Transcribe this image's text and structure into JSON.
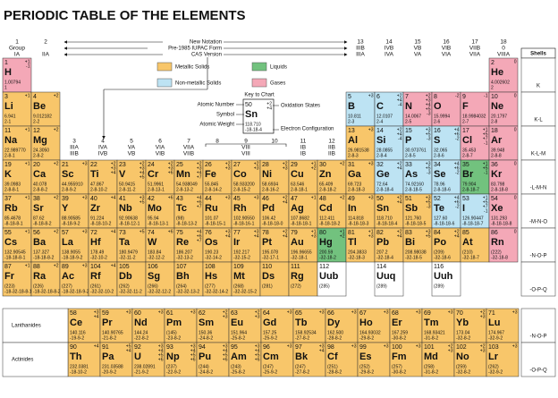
{
  "title": "PERIODIC TABLE OF THE ELEMENTS",
  "notation": [
    "New Notation",
    "Pre-1985 IUPAC Form",
    "CAS Version"
  ],
  "groups": [
    {
      "number": 1,
      "label": "Group",
      "cas": "IA"
    },
    {
      "number": 2,
      "cas": "IIA"
    },
    {
      "number": 3,
      "old": "IIIA",
      "cas": "IIIB"
    },
    {
      "number": 4,
      "old": "IVA",
      "cas": "IVB"
    },
    {
      "number": 5,
      "old": "VA",
      "cas": "VB"
    },
    {
      "number": 6,
      "old": "VIA",
      "cas": "VIB"
    },
    {
      "number": 7,
      "old": "VIIA",
      "cas": "VIIB"
    },
    {
      "number": 8
    },
    {
      "number": 9
    },
    {
      "number": 10
    },
    {
      "number": 11,
      "old": "IB",
      "cas": "IB"
    },
    {
      "number": 12,
      "old": "IIB",
      "cas": "IIB"
    },
    {
      "number": 13,
      "old": "IIIB",
      "cas": "IIIA"
    },
    {
      "number": 14,
      "old": "IVB",
      "cas": "IVA"
    },
    {
      "number": 15,
      "old": "VB",
      "cas": "VA"
    },
    {
      "number": 16,
      "old": "VIB",
      "cas": "VIA"
    },
    {
      "number": 17,
      "old": "VIIB",
      "cas": "VIIA"
    },
    {
      "number": 18,
      "old": "0",
      "cas": "VIIIA"
    }
  ],
  "group_8_10": {
    "old": "VIII",
    "cas": "VIII"
  },
  "legend": [
    {
      "label": "Metallic Solids",
      "color": "#f8c66a"
    },
    {
      "label": "Liquids",
      "color": "#72c27e"
    },
    {
      "label": "Non-metallic Solids",
      "color": "#bde3f3"
    },
    {
      "label": "Gases",
      "color": "#f4a8b7"
    }
  ],
  "key": {
    "title": "Key to Chart",
    "atomic_number_label": "Atomic Number",
    "symbol_label": "Symbol",
    "atomic_weight_label": "Atomic Weight",
    "oxidation_label": "Oxidation States",
    "config_label": "Electron Configuration",
    "example": {
      "z": 50,
      "s": "Sn",
      "w": "118.710",
      "c": "-18-18-4",
      "o": [
        "+2",
        "+4"
      ]
    }
  },
  "shells_title": "Shells",
  "shells": [
    "K",
    "K-L",
    "K-L-M",
    "-L-M-N",
    "-M-N-O",
    "-N-O-P",
    "-O-P-Q",
    "-N-O-P",
    "-O-P-Q"
  ],
  "row_labels": [
    "Lanthanides",
    "Actinides"
  ],
  "elements": [
    {
      "z": 1,
      "s": "H",
      "w": "1.00794",
      "c": "1",
      "o": [
        "+1",
        "-1"
      ],
      "k": 3
    },
    {
      "z": 2,
      "s": "He",
      "w": "4.002602",
      "c": "2",
      "o": [
        "0"
      ],
      "k": 3
    },
    {
      "z": 3,
      "s": "Li",
      "w": "6.941",
      "c": "2-1",
      "o": [
        "+1"
      ],
      "k": 0
    },
    {
      "z": 4,
      "s": "Be",
      "w": "9.012182",
      "c": "2-2",
      "o": [
        "+2"
      ],
      "k": 0
    },
    {
      "z": 5,
      "s": "B",
      "w": "10.811",
      "c": "2-3",
      "o": [
        "+3"
      ],
      "k": 2
    },
    {
      "z": 6,
      "s": "C",
      "w": "12.0107",
      "c": "2-4",
      "o": [
        "+2",
        "+4",
        "-4"
      ],
      "k": 2
    },
    {
      "z": 7,
      "s": "N",
      "w": "14.0067",
      "c": "2-5",
      "o": [
        "+2",
        "+3",
        "+4",
        "+5",
        "-3"
      ],
      "k": 3
    },
    {
      "z": 8,
      "s": "O",
      "w": "15.9994",
      "c": "2-6",
      "o": [
        "-2"
      ],
      "k": 3
    },
    {
      "z": 9,
      "s": "F",
      "w": "18.9984032",
      "c": "2-7",
      "o": [
        "-1"
      ],
      "k": 3
    },
    {
      "z": 10,
      "s": "Ne",
      "w": "20.1797",
      "c": "2-8",
      "o": [
        "0"
      ],
      "k": 3
    },
    {
      "z": 11,
      "s": "Na",
      "w": "22.989770",
      "c": "2-8-1",
      "o": [
        "+1"
      ],
      "k": 0
    },
    {
      "z": 12,
      "s": "Mg",
      "w": "24.3050",
      "c": "2-8-2",
      "o": [
        "+2"
      ],
      "k": 0
    },
    {
      "z": 13,
      "s": "Al",
      "w": "26.981538",
      "c": "2-8-3",
      "o": [
        "+3"
      ],
      "k": 0
    },
    {
      "z": 14,
      "s": "Si",
      "w": "28.0855",
      "c": "2-8-4",
      "o": [
        "+2",
        "+4",
        "-4"
      ],
      "k": 2
    },
    {
      "z": 15,
      "s": "P",
      "w": "30.973761",
      "c": "2-8-5",
      "o": [
        "+3",
        "+5",
        "-3"
      ],
      "k": 2
    },
    {
      "z": 16,
      "s": "S",
      "w": "32.065",
      "c": "2-8-6",
      "o": [
        "+4",
        "+6",
        "-2"
      ],
      "k": 2
    },
    {
      "z": 17,
      "s": "Cl",
      "w": "35.453",
      "c": "2-8-7",
      "o": [
        "+1",
        "+5",
        "+7",
        "-1"
      ],
      "k": 3
    },
    {
      "z": 18,
      "s": "Ar",
      "w": "39.948",
      "c": "2-8-8",
      "o": [
        "0"
      ],
      "k": 3
    },
    {
      "z": 19,
      "s": "K",
      "w": "39.0983",
      "c": "2-8-8-1",
      "o": [
        "+1"
      ],
      "k": 0
    },
    {
      "z": 20,
      "s": "Ca",
      "w": "40.078",
      "c": "2-8-8-2",
      "o": [
        "+2"
      ],
      "k": 0
    },
    {
      "z": 21,
      "s": "Sc",
      "w": "44.955910",
      "c": "2-8-9-2",
      "o": [
        "+3"
      ],
      "k": 0
    },
    {
      "z": 22,
      "s": "Ti",
      "w": "47.867",
      "c": "2-8-10-2",
      "o": [
        "+2",
        "+3",
        "+4"
      ],
      "k": 0
    },
    {
      "z": 23,
      "s": "V",
      "w": "50.9415",
      "c": "2-8-11-2",
      "o": [
        "+2",
        "+3",
        "+4",
        "+5"
      ],
      "k": 0
    },
    {
      "z": 24,
      "s": "Cr",
      "w": "51.9961",
      "c": "2-8-13-1",
      "o": [
        "+2",
        "+3",
        "+6"
      ],
      "k": 0
    },
    {
      "z": 25,
      "s": "Mn",
      "w": "54.938049",
      "c": "2-8-13-2",
      "o": [
        "+2",
        "+3",
        "+4",
        "+7"
      ],
      "k": 0
    },
    {
      "z": 26,
      "s": "Fe",
      "w": "55.845",
      "c": "2-8-14-2",
      "o": [
        "+2",
        "+3"
      ],
      "k": 0
    },
    {
      "z": 27,
      "s": "Co",
      "w": "58.933200",
      "c": "2-8-15-2",
      "o": [
        "+2",
        "+3"
      ],
      "k": 0
    },
    {
      "z": 28,
      "s": "Ni",
      "w": "58.6934",
      "c": "2-8-16-2",
      "o": [
        "+2",
        "+3"
      ],
      "k": 0
    },
    {
      "z": 29,
      "s": "Cu",
      "w": "63.546",
      "c": "2-8-18-1",
      "o": [
        "+1",
        "+2"
      ],
      "k": 0
    },
    {
      "z": 30,
      "s": "Zn",
      "w": "65.409",
      "c": "2-8-18-2",
      "o": [
        "+2"
      ],
      "k": 0
    },
    {
      "z": 31,
      "s": "Ga",
      "w": "69.723",
      "c": "2-8-18-3",
      "o": [
        "+3"
      ],
      "k": 0
    },
    {
      "z": 32,
      "s": "Ge",
      "w": "72.64",
      "c": "2-8-18-4",
      "o": [
        "+2",
        "+4"
      ],
      "k": 2
    },
    {
      "z": 33,
      "s": "As",
      "w": "74.92160",
      "c": "2-8-18-5",
      "o": [
        "+3",
        "+5",
        "-3"
      ],
      "k": 2
    },
    {
      "z": 34,
      "s": "Se",
      "w": "78.96",
      "c": "2-8-18-6",
      "o": [
        "+4",
        "+6",
        "-2"
      ],
      "k": 2
    },
    {
      "z": 35,
      "s": "Br",
      "w": "79.904",
      "c": "2-8-18-7",
      "o": [
        "+1",
        "+5",
        "-1"
      ],
      "k": 1
    },
    {
      "z": 36,
      "s": "Kr",
      "w": "83.798",
      "c": "2-8-18-8",
      "o": [
        "0"
      ],
      "k": 3
    },
    {
      "z": 37,
      "s": "Rb",
      "w": "85.4678",
      "c": "-8-18-8-1",
      "o": [
        "+1"
      ],
      "k": 0
    },
    {
      "z": 38,
      "s": "Sr",
      "w": "87.62",
      "c": "-8-18-8-2",
      "o": [
        "+2"
      ],
      "k": 0
    },
    {
      "z": 39,
      "s": "Y",
      "w": "88.90585",
      "c": "-8-18-9-2",
      "o": [
        "+3"
      ],
      "k": 0
    },
    {
      "z": 40,
      "s": "Zr",
      "w": "91.224",
      "c": "-8-18-10-2",
      "o": [
        "+4"
      ],
      "k": 0
    },
    {
      "z": 41,
      "s": "Nb",
      "w": "92.90638",
      "c": "-8-18-12-1",
      "o": [
        "+3",
        "+5"
      ],
      "k": 0
    },
    {
      "z": 42,
      "s": "Mo",
      "w": "95.94",
      "c": "-8-18-13-1",
      "o": [
        "+6"
      ],
      "k": 0
    },
    {
      "z": 43,
      "s": "Tc",
      "w": "(98)",
      "c": "-8-18-13-2",
      "o": [
        "+4",
        "+6",
        "+7"
      ],
      "k": 0
    },
    {
      "z": 44,
      "s": "Ru",
      "w": "101.07",
      "c": "-8-18-15-1",
      "o": [
        "+3"
      ],
      "k": 0
    },
    {
      "z": 45,
      "s": "Rh",
      "w": "102.90550",
      "c": "-8-18-16-1",
      "o": [
        "+3"
      ],
      "k": 0
    },
    {
      "z": 46,
      "s": "Pd",
      "w": "106.42",
      "c": "-8-18-18-0",
      "o": [
        "+2",
        "+4"
      ],
      "k": 0
    },
    {
      "z": 47,
      "s": "Ag",
      "w": "107.8682",
      "c": "-8-18-18-1",
      "o": [
        "+1"
      ],
      "k": 0
    },
    {
      "z": 48,
      "s": "Cd",
      "w": "112.411",
      "c": "-8-18-18-2",
      "o": [
        "+2"
      ],
      "k": 0
    },
    {
      "z": 49,
      "s": "In",
      "w": "114.818",
      "c": "-8-18-18-3",
      "o": [
        "+3"
      ],
      "k": 0
    },
    {
      "z": 50,
      "s": "Sn",
      "w": "118.710",
      "c": "-8-18-18-4",
      "o": [
        "+2",
        "+4"
      ],
      "k": 0
    },
    {
      "z": 51,
      "s": "Sb",
      "w": "121.760",
      "c": "-8-18-18-5",
      "o": [
        "+3",
        "+5",
        "-3"
      ],
      "k": 0
    },
    {
      "z": 52,
      "s": "Te",
      "w": "127.60",
      "c": "-8-18-18-6",
      "o": [
        "+4",
        "+6",
        "-2"
      ],
      "k": 2
    },
    {
      "z": 53,
      "s": "I",
      "w": "126.90447",
      "c": "-8-18-18-7",
      "o": [
        "+1",
        "+5",
        "+7",
        "-1"
      ],
      "k": 2
    },
    {
      "z": 54,
      "s": "Xe",
      "w": "131.293",
      "c": "-8-18-18-8",
      "o": [
        "0"
      ],
      "k": 3
    },
    {
      "z": 55,
      "s": "Cs",
      "w": "132.90545",
      "c": "-18-18-8-1",
      "o": [
        "+1"
      ],
      "k": 0
    },
    {
      "z": 56,
      "s": "Ba",
      "w": "137.327",
      "c": "-18-18-8-2",
      "o": [
        "+2"
      ],
      "k": 0
    },
    {
      "z": 57,
      "s": "La",
      "w": "138.9055",
      "c": "-18-18-9-2",
      "o": [
        "+3"
      ],
      "k": 0
    },
    {
      "z": 58,
      "s": "Ce",
      "w": "140.116",
      "c": "-19-9-2",
      "o": [
        "+3",
        "+4"
      ],
      "k": 0
    },
    {
      "z": 59,
      "s": "Pr",
      "w": "140.90765",
      "c": "-21-8-2",
      "o": [
        "+3"
      ],
      "k": 0
    },
    {
      "z": 60,
      "s": "Nd",
      "w": "144.24",
      "c": "-22-8-2",
      "o": [
        "+3"
      ],
      "k": 0
    },
    {
      "z": 61,
      "s": "Pm",
      "w": "(145)",
      "c": "-23-8-2",
      "o": [
        "+3"
      ],
      "k": 0
    },
    {
      "z": 62,
      "s": "Sm",
      "w": "150.36",
      "c": "-24-8-2",
      "o": [
        "+2",
        "+3"
      ],
      "k": 0
    },
    {
      "z": 63,
      "s": "Eu",
      "w": "151.964",
      "c": "-25-8-2",
      "o": [
        "+2",
        "+3"
      ],
      "k": 0
    },
    {
      "z": 64,
      "s": "Gd",
      "w": "157.25",
      "c": "-25-9-2",
      "o": [
        "+3"
      ],
      "k": 0
    },
    {
      "z": 65,
      "s": "Tb",
      "w": "158.92534",
      "c": "-27-8-2",
      "o": [
        "+3"
      ],
      "k": 0
    },
    {
      "z": 66,
      "s": "Dy",
      "w": "162.500",
      "c": "-28-8-2",
      "o": [
        "+3"
      ],
      "k": 0
    },
    {
      "z": 67,
      "s": "Ho",
      "w": "164.93032",
      "c": "-29-8-2",
      "o": [
        "+3"
      ],
      "k": 0
    },
    {
      "z": 68,
      "s": "Er",
      "w": "167.259",
      "c": "-30-8-2",
      "o": [
        "+3"
      ],
      "k": 0
    },
    {
      "z": 69,
      "s": "Tm",
      "w": "168.93421",
      "c": "-31-8-2",
      "o": [
        "+3"
      ],
      "k": 0
    },
    {
      "z": 70,
      "s": "Yb",
      "w": "173.04",
      "c": "-32-8-2",
      "o": [
        "+2",
        "+3"
      ],
      "k": 0
    },
    {
      "z": 71,
      "s": "Lu",
      "w": "174.967",
      "c": "-32-9-2",
      "o": [
        "+3"
      ],
      "k": 0
    },
    {
      "z": 72,
      "s": "Hf",
      "w": "178.49",
      "c": "-32-10-2",
      "o": [
        "+4"
      ],
      "k": 0
    },
    {
      "z": 73,
      "s": "Ta",
      "w": "180.9479",
      "c": "-32-11-2",
      "o": [
        "+5"
      ],
      "k": 0
    },
    {
      "z": 74,
      "s": "W",
      "w": "183.84",
      "c": "-32-12-2",
      "o": [
        "+6"
      ],
      "k": 0
    },
    {
      "z": 75,
      "s": "Re",
      "w": "186.207",
      "c": "-32-13-2",
      "o": [
        "+4",
        "+6",
        "+7"
      ],
      "k": 0
    },
    {
      "z": 76,
      "s": "Os",
      "w": "190.23",
      "c": "-32-14-2",
      "o": [
        "+3",
        "+4"
      ],
      "k": 0
    },
    {
      "z": 77,
      "s": "Ir",
      "w": "192.217",
      "c": "-32-15-2",
      "o": [
        "+3",
        "+4"
      ],
      "k": 0
    },
    {
      "z": 78,
      "s": "Pt",
      "w": "195.078",
      "c": "-32-17-1",
      "o": [
        "+2",
        "+4"
      ],
      "k": 0
    },
    {
      "z": 79,
      "s": "Au",
      "w": "196.96655",
      "c": "-32-18-1",
      "o": [
        "+1",
        "+3"
      ],
      "k": 0
    },
    {
      "z": 80,
      "s": "Hg",
      "w": "200.59",
      "c": "-32-18-2",
      "o": [
        "+1",
        "+2"
      ],
      "k": 1
    },
    {
      "z": 81,
      "s": "Tl",
      "w": "204.3833",
      "c": "-32-18-3",
      "o": [
        "+1",
        "+3"
      ],
      "k": 0
    },
    {
      "z": 82,
      "s": "Pb",
      "w": "207.2",
      "c": "-32-18-4",
      "o": [
        "+2",
        "+4"
      ],
      "k": 0
    },
    {
      "z": 83,
      "s": "Bi",
      "w": "208.98038",
      "c": "-32-18-5",
      "o": [
        "+3",
        "+5"
      ],
      "k": 0
    },
    {
      "z": 84,
      "s": "Po",
      "w": "(209)",
      "c": "-32-18-6",
      "o": [
        "+2",
        "+4"
      ],
      "k": 0
    },
    {
      "z": 85,
      "s": "At",
      "w": "(210)",
      "c": "-32-18-7",
      "k": 0
    },
    {
      "z": 86,
      "s": "Rn",
      "w": "(222)",
      "c": "-32-18-8",
      "o": [
        "0"
      ],
      "k": 3
    },
    {
      "z": 87,
      "s": "Fr",
      "w": "(223)",
      "c": "-18-32-18-8-1",
      "o": [
        "+1"
      ],
      "k": 0
    },
    {
      "z": 88,
      "s": "Ra",
      "w": "(226)",
      "c": "-18-32-18-8-2",
      "o": [
        "+2"
      ],
      "k": 0
    },
    {
      "z": 89,
      "s": "Ac",
      "w": "(227)",
      "c": "-18-32-18-9-2",
      "o": [
        "+3"
      ],
      "k": 0
    },
    {
      "z": 90,
      "s": "Th",
      "w": "232.0381",
      "c": "-18-10-2",
      "o": [
        "+4"
      ],
      "k": 0
    },
    {
      "z": 91,
      "s": "Pa",
      "w": "231.03588",
      "c": "-20-9-2",
      "o": [
        "+5",
        "+4"
      ],
      "k": 0
    },
    {
      "z": 92,
      "s": "U",
      "w": "238.02891",
      "c": "-21-9-2",
      "o": [
        "+3",
        "+4",
        "+5",
        "+6"
      ],
      "k": 0
    },
    {
      "z": 93,
      "s": "Np",
      "w": "(237)",
      "c": "-22-9-2",
      "o": [
        "+3",
        "+4",
        "+5",
        "+6"
      ],
      "k": 0
    },
    {
      "z": 94,
      "s": "Pu",
      "w": "(244)",
      "c": "-24-8-2",
      "o": [
        "+3",
        "+4",
        "+5",
        "+6"
      ],
      "k": 0
    },
    {
      "z": 95,
      "s": "Am",
      "w": "(243)",
      "c": "-25-8-2",
      "o": [
        "+3",
        "+4",
        "+5",
        "+6"
      ],
      "k": 0
    },
    {
      "z": 96,
      "s": "Cm",
      "w": "(247)",
      "c": "-25-9-2",
      "o": [
        "+3"
      ],
      "k": 0
    },
    {
      "z": 97,
      "s": "Bk",
      "w": "(247)",
      "c": "-27-8-2",
      "o": [
        "+3",
        "+4"
      ],
      "k": 0
    },
    {
      "z": 98,
      "s": "Cf",
      "w": "(251)",
      "c": "-28-8-2",
      "o": [
        "+3"
      ],
      "k": 0
    },
    {
      "z": 99,
      "s": "Es",
      "w": "(252)",
      "c": "-29-8-2",
      "o": [
        "+3"
      ],
      "k": 0
    },
    {
      "z": 100,
      "s": "Fm",
      "w": "(257)",
      "c": "-30-8-2",
      "o": [
        "+3"
      ],
      "k": 0
    },
    {
      "z": 101,
      "s": "Md",
      "w": "(258)",
      "c": "-31-8-2",
      "o": [
        "+2",
        "+3"
      ],
      "k": 0
    },
    {
      "z": 102,
      "s": "No",
      "w": "(259)",
      "c": "-32-8-2",
      "o": [
        "+2",
        "+3"
      ],
      "k": 0
    },
    {
      "z": 103,
      "s": "Lr",
      "w": "(262)",
      "c": "-32-9-2",
      "o": [
        "+3"
      ],
      "k": 0
    },
    {
      "z": 104,
      "s": "Rf",
      "w": "(261)",
      "c": "-32-32-10-2",
      "o": [
        "+4"
      ],
      "k": 0
    },
    {
      "z": 105,
      "s": "Db",
      "w": "(262)",
      "c": "-32-32-11-2",
      "k": 0
    },
    {
      "z": 106,
      "s": "Sg",
      "w": "(266)",
      "c": "-32-32-12-2",
      "k": 0
    },
    {
      "z": 107,
      "s": "Bh",
      "w": "(264)",
      "c": "-32-32-13-2",
      "k": 0
    },
    {
      "z": 108,
      "s": "Hs",
      "w": "(277)",
      "c": "-32-32-14-2",
      "k": 0
    },
    {
      "z": 109,
      "s": "Mt",
      "w": "(268)",
      "c": "-32-32-15-2",
      "k": 0
    },
    {
      "z": 110,
      "s": "Ds",
      "w": "(281)",
      "k": 0
    },
    {
      "z": 111,
      "s": "Rg",
      "w": "(272)",
      "k": 0
    },
    {
      "z": 112,
      "s": "Uub",
      "w": "(285)"
    },
    {
      "z": 114,
      "s": "Uuq",
      "w": "(289)"
    },
    {
      "z": 116,
      "s": "Uuh",
      "w": "(289)"
    }
  ]
}
